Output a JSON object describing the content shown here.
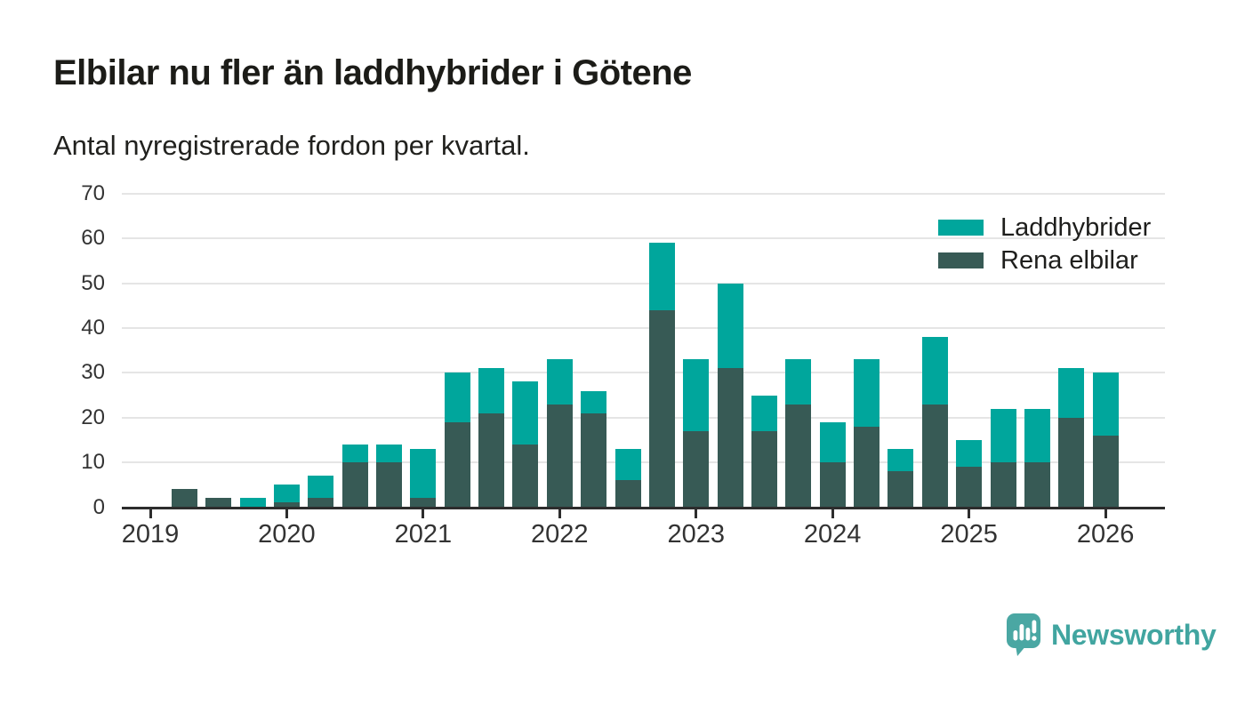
{
  "header": {
    "title": "Elbilar nu fler än laddhybrider i Götene",
    "subtitle": "Antal nyregistrerade fordon per kvartal."
  },
  "legend": {
    "items": [
      {
        "label": "Laddhybrider",
        "color": "#00a69c"
      },
      {
        "label": "Rena elbilar",
        "color": "#375a55"
      }
    ]
  },
  "chart_data": {
    "type": "bar",
    "stacked": true,
    "title": "Elbilar nu fler än laddhybrider i Götene",
    "subtitle": "Antal nyregistrerade fordon per kvartal.",
    "xlabel": "",
    "ylabel": "Antal nyregistrerade fordon",
    "categories": [
      "2019Q1",
      "2019Q2",
      "2019Q3",
      "2019Q4",
      "2020Q1",
      "2020Q2",
      "2020Q3",
      "2020Q4",
      "2021Q1",
      "2021Q2",
      "2021Q3",
      "2021Q4",
      "2022Q1",
      "2022Q2",
      "2022Q3",
      "2022Q4",
      "2023Q1",
      "2023Q2",
      "2023Q3",
      "2023Q4",
      "2024Q1",
      "2024Q2",
      "2024Q3",
      "2024Q4",
      "2025Q1",
      "2025Q2",
      "2025Q3",
      "2025Q4",
      "2026Q1"
    ],
    "series": [
      {
        "name": "Rena elbilar",
        "color": "#375a55",
        "values": [
          0,
          4,
          2,
          0,
          1,
          2,
          10,
          10,
          2,
          19,
          21,
          14,
          23,
          21,
          6,
          44,
          17,
          31,
          17,
          23,
          10,
          18,
          8,
          23,
          9,
          10,
          10,
          20,
          16
        ]
      },
      {
        "name": "Laddhybrider",
        "color": "#00a69c",
        "values": [
          0,
          0,
          0,
          2,
          4,
          5,
          4,
          4,
          11,
          11,
          10,
          14,
          10,
          5,
          7,
          15,
          16,
          19,
          8,
          10,
          9,
          15,
          5,
          15,
          6,
          12,
          12,
          11,
          14
        ]
      }
    ],
    "totals": [
      0,
      4,
      2,
      2,
      5,
      7,
      14,
      14,
      13,
      30,
      31,
      28,
      33,
      26,
      13,
      59,
      33,
      50,
      25,
      33,
      19,
      33,
      13,
      38,
      15,
      22,
      22,
      31,
      30
    ],
    "x_tick_labels": [
      "2019",
      "2020",
      "2021",
      "2022",
      "2023",
      "2024",
      "2025",
      "2026"
    ],
    "yticks": [
      0,
      10,
      20,
      30,
      40,
      50,
      60,
      70
    ],
    "ylim": [
      0,
      70
    ],
    "grid": "horizontal",
    "legend_position": "top-right",
    "axis_color": "#2d2d2d",
    "grid_color": "#e5e5e5",
    "label_color": "#333333"
  },
  "footer": {
    "brand": "Newsworthy",
    "brand_color": "#41a5a0",
    "logo_color": "#4aa7a3"
  }
}
